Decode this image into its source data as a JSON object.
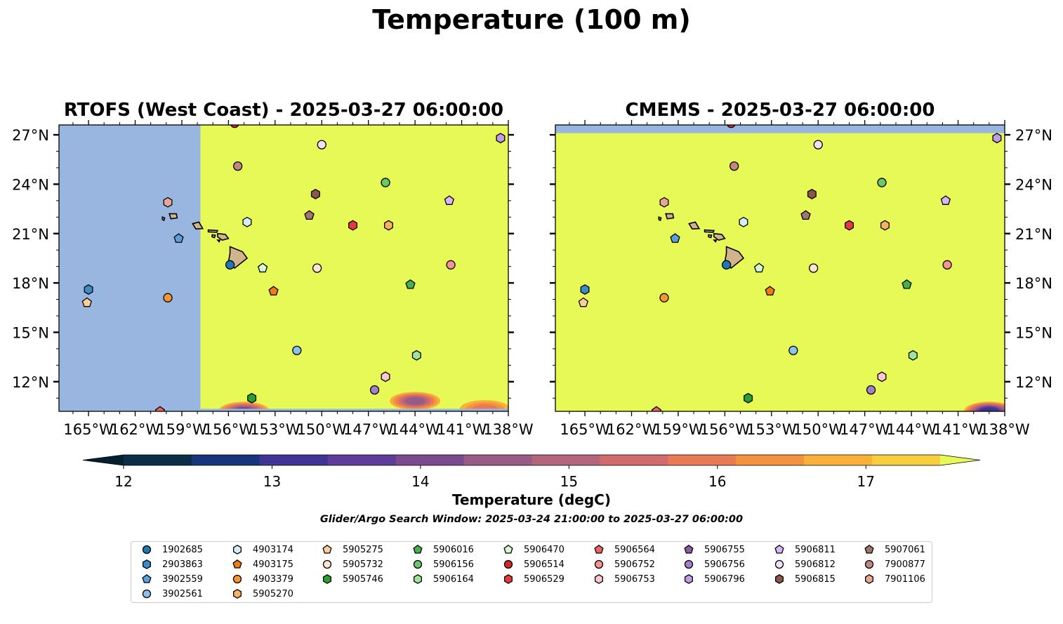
{
  "figure": {
    "title": "Temperature (100 m)",
    "note": "Glider/Argo Search Window: 2025-03-24 21:00:00 to 2025-03-27 06:00:00"
  },
  "chart_data": [
    {
      "type": "heatmap",
      "title": "RTOFS (West Coast) - 2025-03-27 06:00:00",
      "x_ticks": [
        "165°W",
        "162°W",
        "159°W",
        "156°W",
        "153°W",
        "150°W",
        "147°W",
        "144°W",
        "141°W",
        "138°W"
      ],
      "y_ticks": [
        "12°N",
        "15°N",
        "18°N",
        "21°N",
        "24°N",
        "27°N"
      ],
      "xlim": [
        -166.9,
        -138.0
      ],
      "ylim": [
        10.2,
        27.6
      ],
      "missing_west_of": -157.8,
      "field_value_above": 17.5,
      "cool_patches": [
        {
          "lon": -155.0,
          "lat": 10.4,
          "min_temp": 14.0
        },
        {
          "lon": -144.0,
          "lat": 11.0,
          "min_temp": 14.5
        },
        {
          "lon": -139.5,
          "lat": 10.5,
          "min_temp": 16.0
        }
      ],
      "land_color": "#d2b48c",
      "missing_color": "#99b6e0",
      "floats_key": "floats"
    },
    {
      "type": "heatmap",
      "title": "CMEMS - 2025-03-27 06:00:00",
      "x_ticks": [
        "165°W",
        "162°W",
        "159°W",
        "156°W",
        "153°W",
        "150°W",
        "147°W",
        "144°W",
        "141°W",
        "138°W"
      ],
      "y_ticks": [
        "12°N",
        "15°N",
        "18°N",
        "21°N",
        "24°N",
        "27°N"
      ],
      "xlim": [
        -166.9,
        -138.0
      ],
      "ylim": [
        10.2,
        27.6
      ],
      "missing_north_of": 27.1,
      "field_value_above": 17.5,
      "cool_patches": [
        {
          "lon": -139.0,
          "lat": 10.4,
          "min_temp": 13.0
        }
      ],
      "land_color": "#d2b48c",
      "missing_color": "#99b6e0",
      "floats_key": "floats"
    }
  ],
  "colorbar": {
    "label": "Temperature (degC)",
    "ticks": [
      "12",
      "13",
      "14",
      "15",
      "16",
      "17"
    ],
    "levels": [
      12.0,
      12.5,
      13.0,
      13.5,
      14.0,
      14.5,
      15.0,
      15.5,
      16.0,
      16.5,
      17.0,
      17.5
    ],
    "colors": [
      "#0b2d46",
      "#17357a",
      "#403495",
      "#5e3c98",
      "#7a4b8f",
      "#985b85",
      "#b3657a",
      "#d06c6c",
      "#e87a55",
      "#f4933f",
      "#fab139",
      "#f7cf3e"
    ],
    "under_color": "#04202f",
    "over_color": "#e6f956"
  },
  "floats": [
    {
      "id": "1902685",
      "marker": "circle",
      "color": "#1f77b4",
      "lon": -155.9,
      "lat": 19.1
    },
    {
      "id": "2903863",
      "marker": "hexagon",
      "color": "#3b8cc8",
      "lon": -165.0,
      "lat": 17.6
    },
    {
      "id": "3902559",
      "marker": "pentagon",
      "color": "#5aa0dd",
      "lon": -159.2,
      "lat": 20.7
    },
    {
      "id": "3902561",
      "marker": "circle",
      "color": "#8cc1ec",
      "lon": -151.6,
      "lat": 13.9
    },
    {
      "id": "4903174",
      "marker": "hexagon",
      "color": "#d6ecfb",
      "lon": -154.8,
      "lat": 21.7
    },
    {
      "id": "4903175",
      "marker": "pentagon",
      "color": "#ef7c14",
      "lon": -153.1,
      "lat": 17.5
    },
    {
      "id": "4903379",
      "marker": "circle",
      "color": "#f7962f",
      "lon": -159.9,
      "lat": 17.1
    },
    {
      "id": "5905270",
      "marker": "hexagon",
      "color": "#f9b060",
      "lon": -145.7,
      "lat": 21.5
    },
    {
      "id": "5905275",
      "marker": "pentagon",
      "color": "#fbcf98",
      "lon": -165.1,
      "lat": 16.8
    },
    {
      "id": "5905732",
      "marker": "circle",
      "color": "#fde6cd",
      "lon": -150.3,
      "lat": 18.9
    },
    {
      "id": "5905746",
      "marker": "hexagon",
      "color": "#2ca02c",
      "lon": -154.5,
      "lat": 11.0
    },
    {
      "id": "5906016",
      "marker": "pentagon",
      "color": "#47b24a",
      "lon": -144.3,
      "lat": 17.9
    },
    {
      "id": "5906156",
      "marker": "circle",
      "color": "#6cc66a",
      "lon": -145.9,
      "lat": 24.1
    },
    {
      "id": "5906164",
      "marker": "hexagon",
      "color": "#9ee59a",
      "lon": -143.9,
      "lat": 13.6
    },
    {
      "id": "5906470",
      "marker": "pentagon",
      "color": "#d6f8d0",
      "lon": -153.8,
      "lat": 18.9
    },
    {
      "id": "5906514",
      "marker": "circle",
      "color": "#d62728",
      "lon": -155.6,
      "lat": 27.7
    },
    {
      "id": "5906529",
      "marker": "hexagon",
      "color": "#e5393e",
      "lon": -148.0,
      "lat": 21.5
    },
    {
      "id": "5906564",
      "marker": "pentagon",
      "color": "#f06464",
      "lon": -160.4,
      "lat": 10.2
    },
    {
      "id": "5906752",
      "marker": "circle",
      "color": "#f49494",
      "lon": -141.7,
      "lat": 19.1
    },
    {
      "id": "5906753",
      "marker": "hexagon",
      "color": "#fbc9cd",
      "lon": -145.9,
      "lat": 12.3
    },
    {
      "id": "5906755",
      "marker": "pentagon",
      "color": "#8e5aa8",
      "lon": -150.8,
      "lat": 22.1
    },
    {
      "id": "5906756",
      "marker": "circle",
      "color": "#a57fcc",
      "lon": -146.6,
      "lat": 11.5
    },
    {
      "id": "5906796",
      "marker": "hexagon",
      "color": "#c29ce9",
      "lon": -138.5,
      "lat": 26.8
    },
    {
      "id": "5906811",
      "marker": "pentagon",
      "color": "#dab6fb",
      "lon": -141.8,
      "lat": 23.0
    },
    {
      "id": "5906812",
      "marker": "circle",
      "color": "#efe0ff",
      "lon": -150.0,
      "lat": 26.4
    },
    {
      "id": "5906815",
      "marker": "hexagon",
      "color": "#8c564b",
      "lon": -150.4,
      "lat": 23.4
    },
    {
      "id": "5907061",
      "marker": "pentagon",
      "color": "#a1776a",
      "lon": -150.8,
      "lat": 22.1
    },
    {
      "id": "7900877",
      "marker": "circle",
      "color": "#c0897d",
      "lon": -155.4,
      "lat": 25.1
    },
    {
      "id": "7901106",
      "marker": "hexagon",
      "color": "#e7a796",
      "lon": -159.9,
      "lat": 22.9
    }
  ]
}
